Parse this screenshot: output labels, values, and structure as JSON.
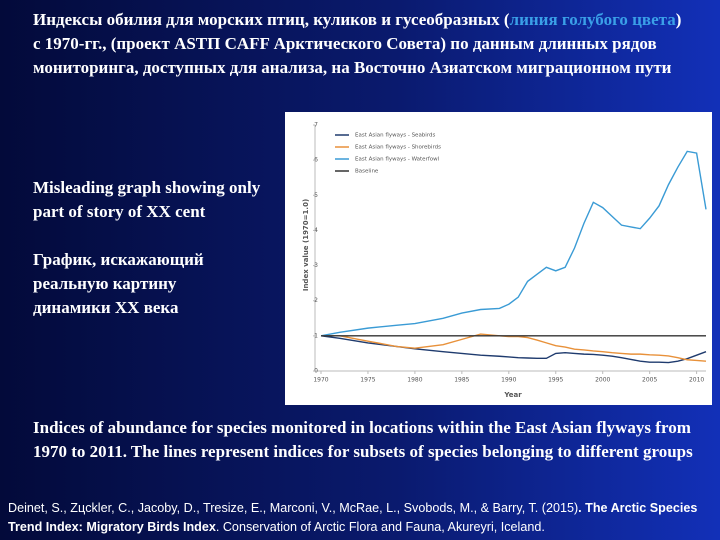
{
  "title": [
    "Индексы обилия для морских птиц, куликов и гусеобразных (",
    "линия голубого цвета",
    ") с 1970-гг.,  (проект ASTП CAFF Арктического Совета) по данным длинных рядов мониторинга, доступных для анализа, на Восточно Азиатском миграционном пути"
  ],
  "notes": [
    "Misleading graph showing only part of story of XX cent",
    "График, искажающий реальную картину динамики XX века"
  ],
  "caption": "Indices of abundance for species monitored in locations within the East Asian flyways from 1970 to 2011. The lines represent indices for subsets of species belonging to different groups",
  "citation": [
    "Deinet, S., Zцckler, C., Jacoby, D., Tresize, E., Marconi, V., McRae, L., Svobods, M., & Barry, T. (2015)",
    ". The Arctic Species Trend Index: Migratory Birds Index",
    ". Conservation of Arctic Flora and Fauna, Akureyri, Iceland."
  ],
  "chart_data": {
    "type": "line",
    "x_label": "Year",
    "y_label": "Index value (1970=1.0)",
    "x": [
      1970,
      1972,
      1975,
      1978,
      1980,
      1983,
      1985,
      1987,
      1989,
      1990,
      1991,
      1992,
      1993,
      1994,
      1995,
      1996,
      1997,
      1998,
      1999,
      2000,
      2001,
      2002,
      2003,
      2004,
      2005,
      2006,
      2007,
      2008,
      2009,
      2010,
      2011
    ],
    "xlim": [
      1970,
      2011
    ],
    "xticks": [
      1970,
      1975,
      1980,
      1985,
      1990,
      1995,
      2000,
      2005,
      2010
    ],
    "ylim": [
      0,
      7
    ],
    "yticks": [
      0,
      1,
      2,
      3,
      4,
      5,
      6,
      7
    ],
    "legend": "upper-left",
    "series": [
      {
        "name": "East Asian flyways - Seabirds",
        "color": "#1f3b6e",
        "values": [
          1.0,
          0.93,
          0.8,
          0.7,
          0.63,
          0.55,
          0.5,
          0.45,
          0.42,
          0.4,
          0.38,
          0.37,
          0.36,
          0.36,
          0.5,
          0.52,
          0.5,
          0.48,
          0.47,
          0.45,
          0.42,
          0.38,
          0.33,
          0.28,
          0.25,
          0.25,
          0.24,
          0.28,
          0.35,
          0.45,
          0.55
        ]
      },
      {
        "name": "East Asian flyways - Shorebirds",
        "color": "#e8913a",
        "values": [
          1.0,
          1.0,
          0.85,
          0.7,
          0.65,
          0.75,
          0.9,
          1.05,
          1.0,
          0.98,
          0.98,
          0.95,
          0.88,
          0.8,
          0.72,
          0.68,
          0.62,
          0.6,
          0.57,
          0.55,
          0.52,
          0.5,
          0.48,
          0.48,
          0.46,
          0.45,
          0.43,
          0.38,
          0.32,
          0.3,
          0.28
        ]
      },
      {
        "name": "East Asian flyways - Waterfowl",
        "color": "#3a9bd5",
        "values": [
          1.0,
          1.1,
          1.22,
          1.3,
          1.35,
          1.5,
          1.65,
          1.75,
          1.78,
          1.9,
          2.1,
          2.55,
          2.75,
          2.95,
          2.85,
          2.95,
          3.5,
          4.2,
          4.8,
          4.65,
          4.4,
          4.15,
          4.1,
          4.05,
          4.35,
          4.7,
          5.3,
          5.8,
          6.25,
          6.2,
          4.6
        ]
      },
      {
        "name": "Baseline",
        "color": "#333333",
        "values": [
          1,
          1,
          1,
          1,
          1,
          1,
          1,
          1,
          1,
          1,
          1,
          1,
          1,
          1,
          1,
          1,
          1,
          1,
          1,
          1,
          1,
          1,
          1,
          1,
          1,
          1,
          1,
          1,
          1,
          1,
          1
        ]
      }
    ]
  }
}
